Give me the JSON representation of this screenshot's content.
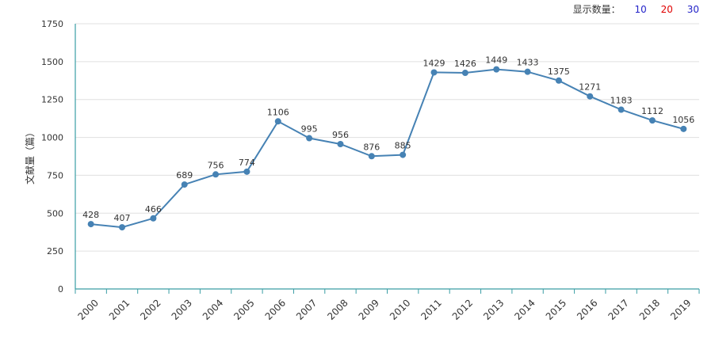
{
  "display_control": {
    "label": "显示数量：",
    "options": [
      "10",
      "20",
      "30"
    ],
    "colors": [
      "#2323c8",
      "#e00000",
      "#2323c8"
    ]
  },
  "chart_data": {
    "type": "line",
    "title": "",
    "xlabel": "",
    "ylabel": "文献量（篇）",
    "ylim": [
      0,
      1750
    ],
    "yticks": [
      0,
      250,
      500,
      750,
      1000,
      1250,
      1500,
      1750
    ],
    "grid": true,
    "line_color": "#4682b4",
    "categories": [
      "2000",
      "2001",
      "2002",
      "2003",
      "2004",
      "2005",
      "2006",
      "2007",
      "2008",
      "2009",
      "2010",
      "2011",
      "2012",
      "2013",
      "2014",
      "2015",
      "2016",
      "2017",
      "2018",
      "2019"
    ],
    "values": [
      428,
      407,
      466,
      689,
      756,
      774,
      1106,
      995,
      956,
      876,
      885,
      1429,
      1426,
      1449,
      1433,
      1375,
      1271,
      1183,
      1112,
      1056
    ]
  }
}
